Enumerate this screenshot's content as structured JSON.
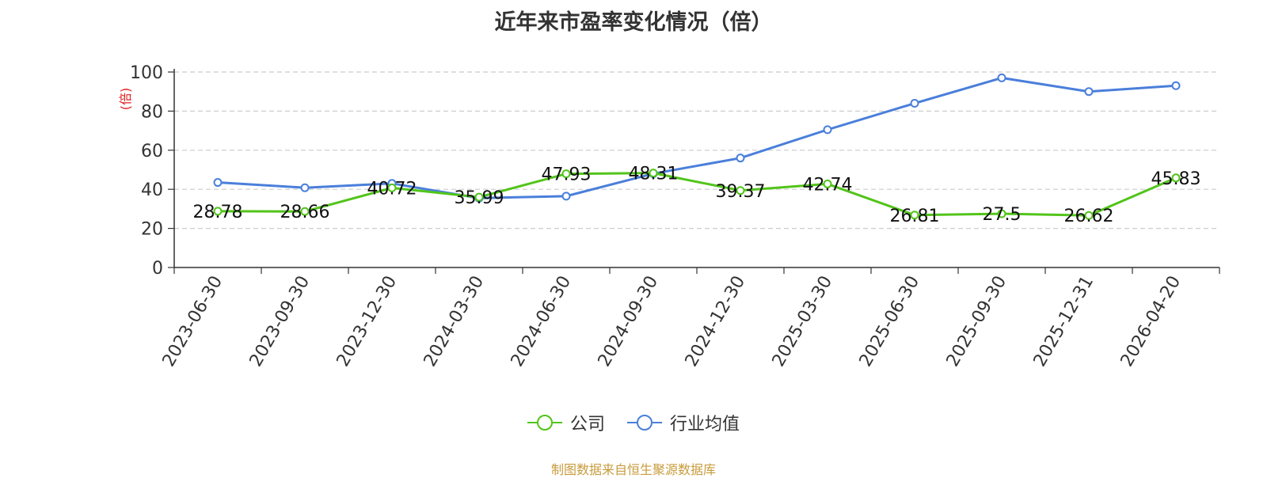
{
  "title": "近年来市盈率变化情况（倍）",
  "source_note": "制图数据来自恒生聚源数据库",
  "colors": {
    "company": "#52c41a",
    "industry": "#4a7fdb",
    "ylabel": "#e02020",
    "grid": "#cccccc"
  },
  "chart_data": {
    "type": "line",
    "title": "近年来市盈率变化情况（倍）",
    "xlabel": "",
    "ylabel": "(倍)",
    "ylim": [
      0,
      100
    ],
    "yticks": [
      0,
      20,
      40,
      60,
      80,
      100
    ],
    "grid": true,
    "legend_position": "bottom-center",
    "categories": [
      "2023-06-30",
      "2023-09-30",
      "2023-12-30",
      "2024-03-30",
      "2024-06-30",
      "2024-09-30",
      "2024-12-30",
      "2025-03-30",
      "2025-06-30",
      "2025-09-30",
      "2025-12-31",
      "2026-04-20"
    ],
    "series": [
      {
        "name": "公司",
        "color": "#52c41a",
        "values": [
          28.78,
          28.66,
          40.72,
          35.99,
          47.93,
          48.31,
          39.37,
          42.74,
          26.81,
          27.5,
          26.62,
          45.83
        ],
        "labels": [
          "28.78",
          "28.66",
          "40.72",
          "35.99",
          "47.93",
          "48.31",
          "39.37",
          "42.74",
          "26.81",
          "27.5",
          "26.62",
          "45.83"
        ]
      },
      {
        "name": "行业均值",
        "color": "#4a7fdb",
        "values": [
          43.5,
          40.8,
          43.0,
          35.5,
          36.5,
          48.0,
          56.0,
          70.5,
          84.0,
          97.0,
          90.0,
          93.0
        ]
      }
    ]
  }
}
